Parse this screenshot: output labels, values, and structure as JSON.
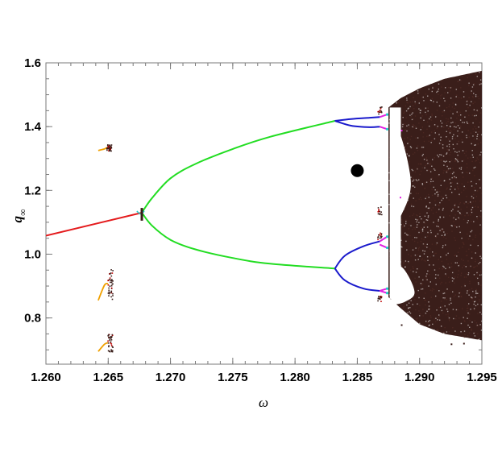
{
  "chart_data": {
    "type": "scatter",
    "title": "",
    "xlabel": "ω",
    "ylabel_base": "q",
    "ylabel_sub": "∞",
    "xlim": [
      1.26,
      1.295
    ],
    "ylim": [
      0.655,
      1.6
    ],
    "x_ticks": [
      "1.260",
      "1.265",
      "1.270",
      "1.275",
      "1.280",
      "1.285",
      "1.290",
      "1.295"
    ],
    "y_ticks": [
      "0.8",
      "1.0",
      "1.2",
      "1.4",
      "1.6"
    ],
    "x_tick_values": [
      1.26,
      1.265,
      1.27,
      1.275,
      1.28,
      1.285,
      1.29,
      1.295
    ],
    "y_tick_values": [
      0.8,
      1.0,
      1.2,
      1.4,
      1.6
    ],
    "grid": false,
    "legend": "none",
    "colors": {
      "period1": "#e41a1c",
      "period2": "#22dd22",
      "period4": "#1a1acc",
      "period8": "#e020e0",
      "period16": "#22cccc",
      "isolated": "#f0a000",
      "chaos": "#3a1e1a",
      "marker": "#000000"
    },
    "series": [
      {
        "name": "",
        "kind": "period1",
        "x": [
          1.26,
          1.2677
        ],
        "y": [
          1.058,
          1.13
        ]
      },
      {
        "name": "",
        "kind": "period2-upper",
        "x": [
          1.2677,
          1.2685,
          1.27,
          1.272,
          1.275,
          1.278,
          1.2832
        ],
        "y": [
          1.13,
          1.175,
          1.238,
          1.283,
          1.33,
          1.368,
          1.418
        ]
      },
      {
        "name": "",
        "kind": "period2-lower",
        "x": [
          1.2677,
          1.2685,
          1.27,
          1.272,
          1.275,
          1.278,
          1.2832
        ],
        "y": [
          1.13,
          1.09,
          1.045,
          1.015,
          0.988,
          0.97,
          0.955
        ]
      },
      {
        "name": "",
        "kind": "period4",
        "branches": [
          {
            "x": [
              1.2832,
              1.2845,
              1.286,
              1.2868
            ],
            "y": [
              1.418,
              1.403,
              1.398,
              1.4
            ]
          },
          {
            "x": [
              1.2832,
              1.2845,
              1.286,
              1.2868
            ],
            "y": [
              1.418,
              1.424,
              1.428,
              1.43
            ]
          },
          {
            "x": [
              1.2832,
              1.284,
              1.2855,
              1.2868
            ],
            "y": [
              0.955,
              0.995,
              1.025,
              1.04
            ]
          },
          {
            "x": [
              1.2832,
              1.284,
              1.2855,
              1.2868
            ],
            "y": [
              0.955,
              0.918,
              0.892,
              0.885
            ]
          }
        ]
      },
      {
        "name": "",
        "kind": "marker",
        "x": [
          1.285
        ],
        "y": [
          1.262
        ]
      },
      {
        "name": "",
        "kind": "isolated-windows",
        "x": [
          1.2645,
          1.2645,
          1.2645
        ],
        "y": [
          1.33,
          0.895,
          0.72
        ]
      }
    ],
    "chaos_region": {
      "x_start": 1.2875,
      "x_end": 1.2953,
      "upper_boundary": {
        "x": [
          1.2875,
          1.2885,
          1.29,
          1.292,
          1.295
        ],
        "y": [
          1.46,
          1.49,
          1.52,
          1.55,
          1.575
        ]
      },
      "lower_boundary": {
        "x": [
          1.2875,
          1.2885,
          1.29,
          1.292,
          1.295
        ],
        "y": [
          0.865,
          0.83,
          0.78,
          0.75,
          0.73
        ]
      }
    }
  }
}
